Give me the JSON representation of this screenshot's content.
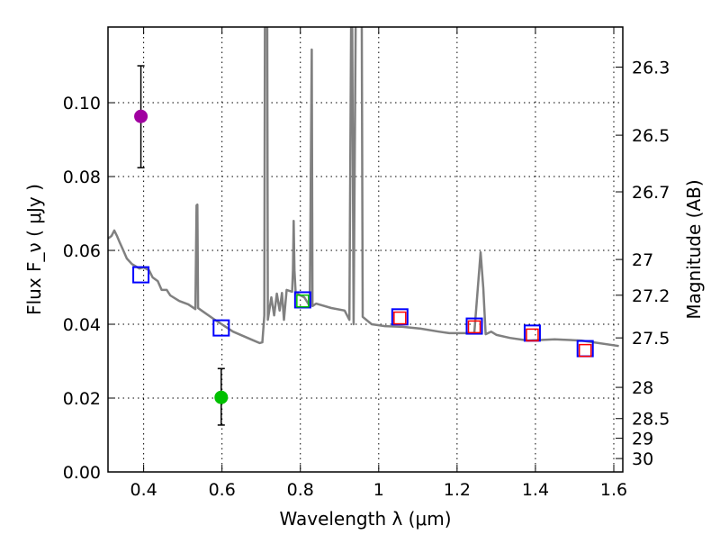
{
  "chart_data": {
    "type": "line",
    "xlabel": "Wavelength  λ (μm)",
    "ylabel": "Flux  F_ν  ( μJy )",
    "ylabel_right": "Magnitude (AB)",
    "xlim": [
      0.309,
      1.623
    ],
    "ylim": [
      0,
      0.1205
    ],
    "grid": true,
    "x_ticks": [
      0.4,
      0.6,
      0.8,
      1.0,
      1.2,
      1.4,
      1.6
    ],
    "x_tick_labels": [
      "0.4",
      "0.6",
      "0.8",
      "1",
      "1.2",
      "1.4",
      "1.6"
    ],
    "y_ticks": [
      0,
      0.02,
      0.04,
      0.06,
      0.08,
      0.1
    ],
    "y_tick_labels": [
      "0.00",
      "0.02",
      "0.04",
      "0.06",
      "0.08",
      "0.10"
    ],
    "mag_ticks": [
      26.3,
      26.5,
      26.7,
      27,
      27.2,
      27.5,
      28,
      28.5,
      29,
      30
    ],
    "mag_tick_labels": [
      "26.3",
      "26.5",
      "26.7",
      "27",
      "27.2",
      "27.5",
      "28",
      "28.5",
      "29",
      "30"
    ],
    "mag_zeropoint": 23.9,
    "colors": {
      "spectrum": "#808080",
      "blue": "#0000ff",
      "red": "#ff0000",
      "green_square": "#00c000",
      "magenta": "#a000a0",
      "green_point": "#00c000"
    },
    "spectrum": {
      "x": [
        0.309,
        0.318,
        0.325,
        0.332,
        0.338,
        0.348,
        0.357,
        0.37,
        0.389,
        0.4,
        0.414,
        0.423,
        0.436,
        0.446,
        0.459,
        0.468,
        0.491,
        0.514,
        0.532,
        0.535,
        0.537,
        0.539,
        0.548,
        0.582,
        0.628,
        0.674,
        0.696,
        0.703,
        0.708,
        0.71,
        0.715,
        0.717,
        0.726,
        0.733,
        0.74,
        0.747,
        0.753,
        0.758,
        0.765,
        0.779,
        0.781,
        0.783,
        0.785,
        0.788,
        0.81,
        0.824,
        0.829,
        0.831,
        0.84,
        0.879,
        0.913,
        0.925,
        0.931,
        0.936,
        0.943,
        0.956,
        0.959,
        0.982,
        1.016,
        1.061,
        1.107,
        1.153,
        1.18,
        1.216,
        1.244,
        1.253,
        1.26,
        1.267,
        1.273,
        1.287,
        1.301,
        1.335,
        1.381,
        1.449,
        1.517,
        1.613
      ],
      "y": [
        0.0632,
        0.0639,
        0.0654,
        0.0639,
        0.0624,
        0.06,
        0.0578,
        0.0563,
        0.0551,
        0.0554,
        0.0546,
        0.0527,
        0.0517,
        0.0493,
        0.0493,
        0.0478,
        0.0463,
        0.0454,
        0.0441,
        0.0722,
        0.0724,
        0.0444,
        0.0437,
        0.0412,
        0.038,
        0.0359,
        0.0349,
        0.0351,
        0.0424,
        0.15,
        0.15,
        0.0412,
        0.0473,
        0.0424,
        0.0483,
        0.0437,
        0.0485,
        0.0412,
        0.0493,
        0.0488,
        0.0546,
        0.068,
        0.0546,
        0.0485,
        0.0473,
        0.0449,
        0.1144,
        0.0449,
        0.0456,
        0.0444,
        0.0437,
        0.0412,
        0.15,
        0.04,
        0.15,
        0.15,
        0.042,
        0.04,
        0.0395,
        0.0393,
        0.0388,
        0.038,
        0.0376,
        0.0376,
        0.0376,
        0.0498,
        0.0595,
        0.0498,
        0.0373,
        0.038,
        0.0371,
        0.0363,
        0.0356,
        0.0359,
        0.0356,
        0.0341
      ]
    },
    "model_photometry_blue": {
      "x": [
        0.393,
        0.598,
        0.806,
        1.054,
        1.244,
        1.392,
        1.527
      ],
      "y": [
        0.0534,
        0.039,
        0.0466,
        0.042,
        0.0395,
        0.0376,
        0.0334
      ]
    },
    "model_photometry_red": {
      "x": [
        1.054,
        1.244,
        1.392,
        1.527
      ],
      "y": [
        0.0417,
        0.0393,
        0.0371,
        0.0329
      ]
    },
    "model_photometry_green": {
      "x": [
        0.806
      ],
      "y": [
        0.0463
      ]
    },
    "observed": [
      {
        "x": 0.393,
        "y": 0.0963,
        "err_low": 0.0824,
        "err_high": 0.11,
        "color": "#a000a0"
      },
      {
        "x": 0.598,
        "y": 0.0202,
        "err_low": 0.0127,
        "err_high": 0.028,
        "color": "#00c000"
      }
    ]
  }
}
